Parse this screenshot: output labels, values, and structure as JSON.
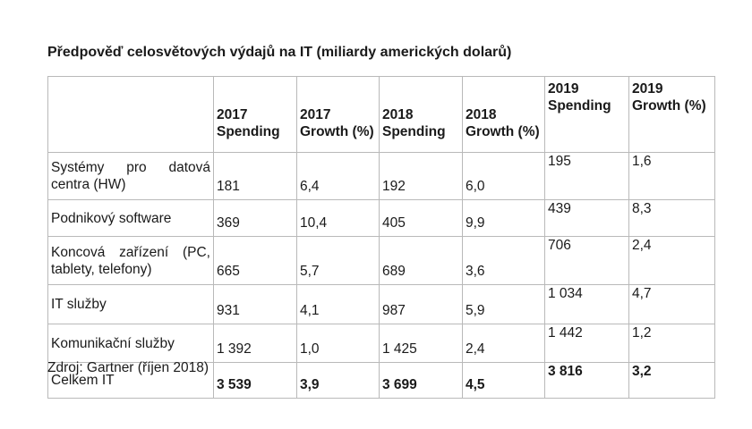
{
  "title": "Předpověď celosvětových výdajů na IT (miliardy amerických dolarů)",
  "table": {
    "headers": [
      "",
      "2017 Spending",
      "2017 Growth (%)",
      "2018 Spending",
      "2018 Growth (%)",
      "2019 Spending",
      "2019 Growth (%)"
    ],
    "rows": [
      {
        "label": "Systémy pro datová centra (HW)",
        "values": [
          "181",
          "6,4",
          "192",
          "6,0",
          "195",
          "1,6"
        ]
      },
      {
        "label": "Podnikový software",
        "values": [
          "369",
          "10,4",
          "405",
          "9,9",
          "439",
          "8,3"
        ]
      },
      {
        "label": "Koncová zařízení (PC, tablety, telefony)",
        "values": [
          "665",
          "5,7",
          "689",
          "3,6",
          "706",
          "2,4"
        ]
      },
      {
        "label": "IT služby",
        "values": [
          "931",
          "4,1",
          "987",
          "5,9",
          "1 034",
          "4,7"
        ]
      },
      {
        "label": "Komunikační služby",
        "values": [
          "1 392",
          "1,0",
          "1 425",
          "2,4",
          "1 442",
          "1,2"
        ]
      },
      {
        "label": "Celkem IT",
        "values": [
          "3 539",
          "3,9",
          "3 699",
          "4,5",
          "3 816",
          "3,2"
        ]
      }
    ]
  },
  "source": "Zdroj: Gartner (říjen 2018)"
}
